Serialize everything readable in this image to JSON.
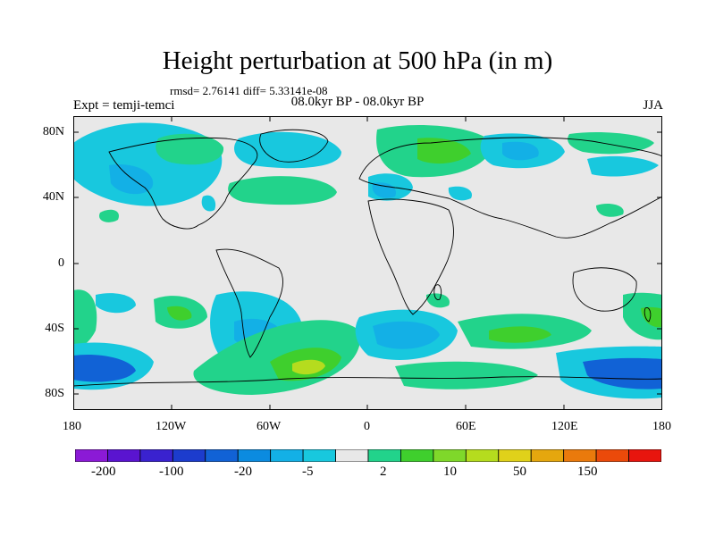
{
  "title": "Height perturbation at 500 hPa (in m)",
  "stats": "rmsd= 2.76141 diff= 5.33141e-08",
  "experiment": "Expt = temji-temci",
  "period": "08.0kyr BP - 08.0kyr BP",
  "season": "JJA",
  "lat_labels": [
    "80N",
    "40N",
    "0",
    "40S",
    "80S"
  ],
  "lon_labels": [
    "180",
    "120W",
    "60W",
    "0",
    "60E",
    "120E",
    "180"
  ],
  "colorbar": {
    "labels": [
      "-200",
      "-100",
      "-20",
      "-5",
      "2",
      "10",
      "50",
      "150"
    ],
    "colors": [
      "#8b1ad6",
      "#5a14d0",
      "#3a22cf",
      "#1c3ccd",
      "#1162d6",
      "#0b8be0",
      "#13b0e6",
      "#18c8de",
      "#e8e8e8",
      "#22d38b",
      "#3fcf2d",
      "#7fd82a",
      "#b5dc1e",
      "#e0d11a",
      "#e5a70e",
      "#ea7a0c",
      "#eb4a0a",
      "#e8150e"
    ]
  },
  "colors": {
    "neutral": "#e8e8e8",
    "light_blue": "#18c8de",
    "mid_blue": "#13b0e6",
    "blue": "#0b8be0",
    "dark_blue": "#1162d6",
    "green": "#22d38b",
    "yellow_green": "#3fcf2d",
    "lime": "#b5dc1e"
  }
}
